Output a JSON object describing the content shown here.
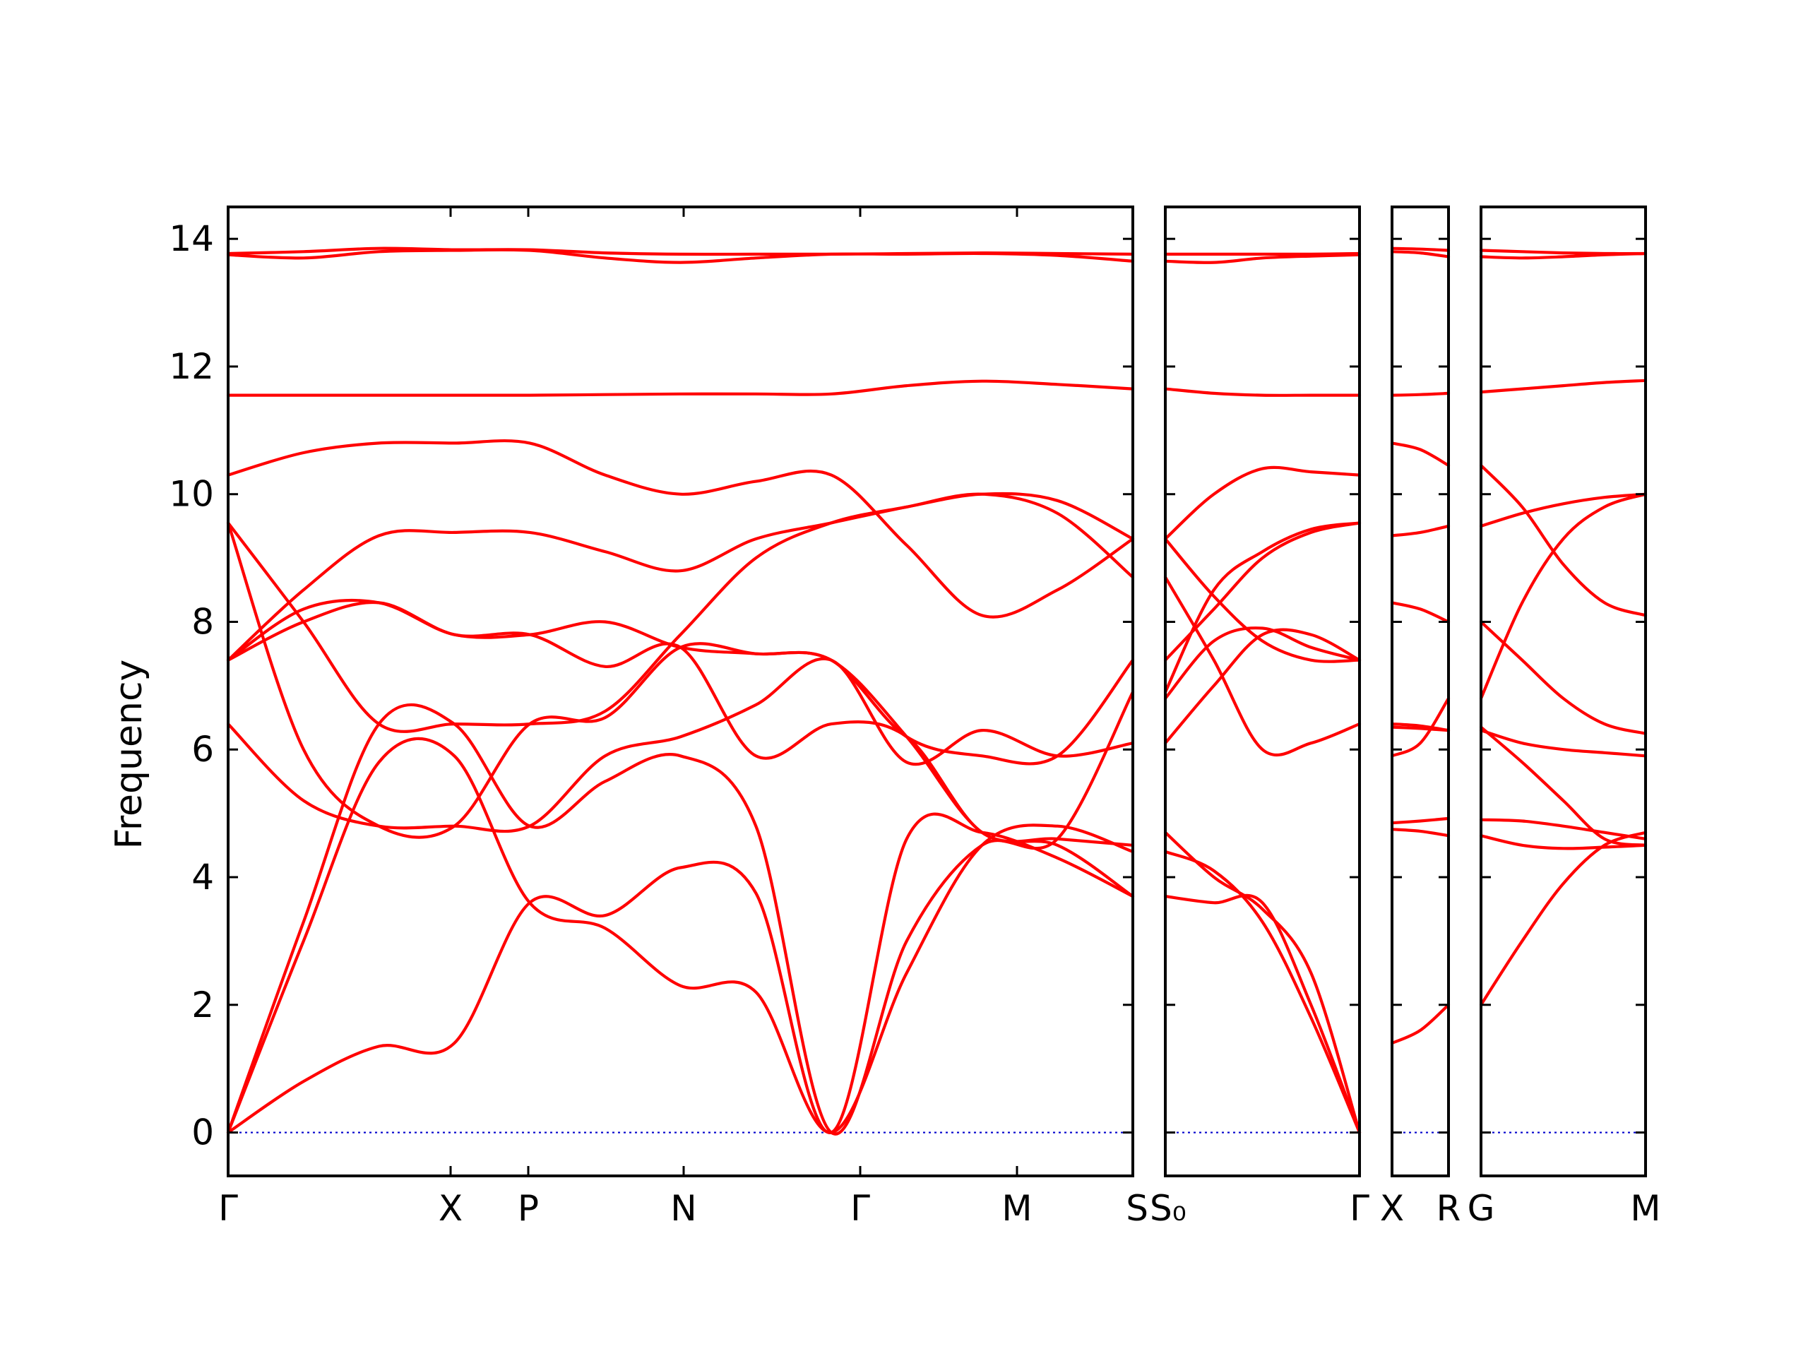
{
  "chart_data": {
    "type": "line",
    "ylabel": "Frequency",
    "ylim": [
      -0.68,
      14.5
    ],
    "yticks": [
      0,
      2,
      4,
      6,
      8,
      10,
      12,
      14
    ],
    "colors": {
      "bands": "#ff0000",
      "zero_line": "#0000cc",
      "frame": "#000000"
    },
    "grid": false,
    "panels": [
      {
        "name": "panel-1",
        "path_labels": [
          "Γ",
          "X",
          "P",
          "N",
          "Γ",
          "M",
          "S"
        ],
        "series": [
          {
            "name": "band-1",
            "x": [
              0,
              0.5,
              1,
              1.5,
              2,
              2.5,
              3,
              3.5,
              4,
              4.5,
              5,
              5.5,
              6
            ],
            "y": [
              0,
              0.8,
              1.35,
              1.4,
              3.6,
              3.4,
              4.15,
              3.75,
              0,
              4.6,
              4.7,
              4.3,
              3.7
            ]
          },
          {
            "name": "band-2",
            "x": [
              0,
              0.5,
              1,
              1.5,
              2,
              2.5,
              3,
              3.5,
              4,
              4.5,
              5,
              5.5,
              6
            ],
            "y": [
              0,
              3.0,
              5.8,
              5.9,
              3.6,
              3.2,
              2.3,
              2.2,
              0,
              2.5,
              4.5,
              4.8,
              4.4
            ]
          },
          {
            "name": "band-3",
            "x": [
              0,
              0.5,
              1,
              1.5,
              2,
              2.5,
              3,
              3.5,
              4,
              4.5,
              5,
              5.5,
              6
            ],
            "y": [
              0,
              3.3,
              6.4,
              6.4,
              4.8,
              5.5,
              5.9,
              4.8,
              0,
              3.0,
              4.5,
              4.6,
              6.9
            ]
          },
          {
            "name": "band-4",
            "x": [
              0,
              0.5,
              1,
              1.5,
              2,
              2.5,
              3,
              3.5,
              4,
              4.5,
              5,
              5.5,
              6
            ],
            "y": [
              6.4,
              5.2,
              4.8,
              4.8,
              4.8,
              5.9,
              6.2,
              6.7,
              7.4,
              5.8,
              6.3,
              5.9,
              6.1
            ]
          },
          {
            "name": "band-5",
            "x": [
              0,
              0.5,
              1,
              1.5,
              2,
              2.5,
              3,
              3.5,
              4,
              4.5,
              5,
              5.5,
              6
            ],
            "y": [
              7.4,
              8.2,
              8.3,
              7.8,
              7.8,
              7.3,
              7.6,
              5.9,
              6.4,
              6.2,
              4.7,
              4.6,
              4.5
            ]
          },
          {
            "name": "band-6",
            "x": [
              0,
              0.5,
              1,
              1.5,
              2,
              2.5,
              3,
              3.5,
              4,
              4.5,
              5,
              5.5,
              6
            ],
            "y": [
              7.4,
              8.0,
              8.3,
              7.8,
              7.8,
              8.0,
              7.6,
              7.5,
              7.4,
              6.2,
              5.9,
              5.9,
              7.4
            ]
          },
          {
            "name": "band-7",
            "x": [
              0,
              0.5,
              1,
              1.5,
              2,
              2.5,
              3,
              3.5,
              4,
              4.5,
              5,
              5.5,
              6
            ],
            "y": [
              9.55,
              6.0,
              4.8,
              4.8,
              6.4,
              6.5,
              7.6,
              7.5,
              7.4,
              6.2,
              4.7,
              4.5,
              3.7
            ]
          },
          {
            "name": "band-8",
            "x": [
              0,
              0.5,
              1,
              1.5,
              2,
              2.5,
              3,
              3.5,
              4,
              4.5,
              5,
              5.5,
              6
            ],
            "y": [
              9.55,
              8.0,
              6.4,
              6.4,
              6.4,
              6.6,
              7.8,
              9.0,
              9.55,
              9.8,
              10.0,
              9.9,
              9.3
            ]
          },
          {
            "name": "band-9",
            "x": [
              0,
              0.5,
              1,
              1.5,
              2,
              2.5,
              3,
              3.5,
              4,
              4.5,
              5,
              5.5,
              6
            ],
            "y": [
              7.4,
              8.5,
              9.35,
              9.4,
              9.4,
              9.1,
              8.8,
              9.3,
              9.55,
              9.8,
              10.0,
              9.7,
              8.7
            ]
          },
          {
            "name": "band-10",
            "x": [
              0,
              0.5,
              1,
              1.5,
              2,
              2.5,
              3,
              3.5,
              4,
              4.5,
              5,
              5.5,
              6
            ],
            "y": [
              10.3,
              10.65,
              10.8,
              10.8,
              10.8,
              10.3,
              10.0,
              10.2,
              10.3,
              9.2,
              8.1,
              8.5,
              9.3
            ]
          },
          {
            "name": "band-11",
            "x": [
              0,
              0.5,
              1,
              1.5,
              2,
              2.5,
              3,
              3.5,
              4,
              4.5,
              5,
              5.5,
              6
            ],
            "y": [
              11.55,
              11.55,
              11.55,
              11.55,
              11.55,
              11.56,
              11.57,
              11.57,
              11.57,
              11.7,
              11.77,
              11.72,
              11.65
            ]
          },
          {
            "name": "band-12",
            "x": [
              0,
              0.5,
              1,
              1.5,
              2,
              2.5,
              3,
              3.5,
              4,
              4.5,
              5,
              5.5,
              6
            ],
            "y": [
              13.75,
              13.7,
              13.8,
              13.82,
              13.82,
              13.7,
              13.63,
              13.7,
              13.76,
              13.76,
              13.77,
              13.74,
              13.65
            ]
          },
          {
            "name": "band-13",
            "x": [
              0,
              0.5,
              1,
              1.5,
              2,
              2.5,
              3,
              3.5,
              4,
              4.5,
              5,
              5.5,
              6
            ],
            "y": [
              13.77,
              13.8,
              13.85,
              13.83,
              13.83,
              13.78,
              13.76,
              13.76,
              13.76,
              13.77,
              13.78,
              13.77,
              13.76
            ]
          }
        ]
      },
      {
        "name": "panel-2",
        "path_labels": [
          "S₀",
          "Γ"
        ],
        "series": [
          {
            "name": "band-1",
            "x": [
              0,
              0.25,
              0.5,
              0.75,
              1
            ],
            "y": [
              3.7,
              3.6,
              3.6,
              2.0,
              0
            ]
          },
          {
            "name": "band-2",
            "x": [
              0,
              0.25,
              0.5,
              0.75,
              1
            ],
            "y": [
              4.4,
              4.1,
              3.3,
              1.8,
              0
            ]
          },
          {
            "name": "band-3",
            "x": [
              0,
              0.25,
              0.5,
              0.75,
              1
            ],
            "y": [
              4.7,
              4.0,
              3.5,
              2.5,
              0
            ]
          },
          {
            "name": "band-4",
            "x": [
              0,
              0.25,
              0.5,
              0.75,
              1
            ],
            "y": [
              6.1,
              7.0,
              7.8,
              7.8,
              7.4
            ]
          },
          {
            "name": "band-5",
            "x": [
              0,
              0.25,
              0.5,
              0.75,
              1
            ],
            "y": [
              6.8,
              7.7,
              7.9,
              7.6,
              7.4
            ]
          },
          {
            "name": "band-6",
            "x": [
              0,
              0.25,
              0.5,
              0.75,
              1
            ],
            "y": [
              7.4,
              8.2,
              9.0,
              9.4,
              9.55
            ]
          },
          {
            "name": "band-7",
            "x": [
              0,
              0.25,
              0.5,
              0.75,
              1
            ],
            "y": [
              8.7,
              7.4,
              6.0,
              6.1,
              6.4
            ]
          },
          {
            "name": "band-8",
            "x": [
              0,
              0.25,
              0.5,
              0.75,
              1
            ],
            "y": [
              9.3,
              8.4,
              7.7,
              7.4,
              7.4
            ]
          },
          {
            "name": "band-9",
            "x": [
              0,
              0.25,
              0.5,
              0.75,
              1
            ],
            "y": [
              6.9,
              8.5,
              9.1,
              9.45,
              9.55
            ]
          },
          {
            "name": "band-10",
            "x": [
              0,
              0.25,
              0.5,
              0.75,
              1
            ],
            "y": [
              9.3,
              10.0,
              10.4,
              10.35,
              10.3
            ]
          },
          {
            "name": "band-11",
            "x": [
              0,
              0.25,
              0.5,
              0.75,
              1
            ],
            "y": [
              11.65,
              11.58,
              11.55,
              11.55,
              11.55
            ]
          },
          {
            "name": "band-12",
            "x": [
              0,
              0.25,
              0.5,
              0.75,
              1
            ],
            "y": [
              13.65,
              13.63,
              13.7,
              13.73,
              13.75
            ]
          },
          {
            "name": "band-13",
            "x": [
              0,
              0.25,
              0.5,
              0.75,
              1
            ],
            "y": [
              13.76,
              13.76,
              13.76,
              13.76,
              13.77
            ]
          }
        ]
      },
      {
        "name": "panel-3",
        "path_labels": [
          "X",
          "R"
        ],
        "series": [
          {
            "name": "band-1",
            "x": [
              0,
              0.5,
              1
            ],
            "y": [
              1.4,
              1.6,
              2.0
            ]
          },
          {
            "name": "band-2",
            "x": [
              0,
              0.5,
              1
            ],
            "y": [
              4.75,
              4.72,
              4.65
            ]
          },
          {
            "name": "band-3",
            "x": [
              0,
              0.5,
              1
            ],
            "y": [
              4.85,
              4.88,
              4.92
            ]
          },
          {
            "name": "band-4",
            "x": [
              0,
              0.5,
              1
            ],
            "y": [
              5.9,
              6.1,
              6.8
            ]
          },
          {
            "name": "band-5",
            "x": [
              0,
              0.5,
              1
            ],
            "y": [
              6.4,
              6.37,
              6.3
            ]
          },
          {
            "name": "band-6",
            "x": [
              0,
              0.5,
              1
            ],
            "y": [
              6.35,
              6.33,
              6.3
            ]
          },
          {
            "name": "band-7",
            "x": [
              0,
              0.5,
              1
            ],
            "y": [
              8.3,
              8.2,
              8.0
            ]
          },
          {
            "name": "band-8",
            "x": [
              0,
              0.5,
              1
            ],
            "y": [
              9.35,
              9.4,
              9.5
            ]
          },
          {
            "name": "band-9",
            "x": [
              0,
              0.5,
              1
            ],
            "y": [
              10.8,
              10.7,
              10.45
            ]
          },
          {
            "name": "band-10",
            "x": [
              0,
              0.5,
              1
            ],
            "y": [
              11.55,
              11.56,
              11.58
            ]
          },
          {
            "name": "band-11",
            "x": [
              0,
              0.5,
              1
            ],
            "y": [
              13.8,
              13.78,
              13.72
            ]
          },
          {
            "name": "band-12",
            "x": [
              0,
              0.5,
              1
            ],
            "y": [
              13.85,
              13.84,
              13.82
            ]
          }
        ]
      },
      {
        "name": "panel-4",
        "path_labels": [
          "G",
          "M"
        ],
        "series": [
          {
            "name": "band-1",
            "x": [
              0,
              0.25,
              0.5,
              0.75,
              1
            ],
            "y": [
              2.0,
              3.0,
              3.9,
              4.5,
              4.7
            ]
          },
          {
            "name": "band-2",
            "x": [
              0,
              0.25,
              0.5,
              0.75,
              1
            ],
            "y": [
              4.65,
              4.5,
              4.45,
              4.47,
              4.5
            ]
          },
          {
            "name": "band-3",
            "x": [
              0,
              0.25,
              0.5,
              0.75,
              1
            ],
            "y": [
              4.9,
              4.88,
              4.8,
              4.7,
              4.6
            ]
          },
          {
            "name": "band-4",
            "x": [
              0,
              0.25,
              0.5,
              0.75,
              1
            ],
            "y": [
              6.3,
              6.1,
              6.0,
              5.95,
              5.9
            ]
          },
          {
            "name": "band-5",
            "x": [
              0,
              0.25,
              0.5,
              0.75,
              1
            ],
            "y": [
              6.35,
              5.8,
              5.2,
              4.6,
              4.5
            ]
          },
          {
            "name": "band-6",
            "x": [
              0,
              0.25,
              0.5,
              0.75,
              1
            ],
            "y": [
              8.0,
              7.4,
              6.8,
              6.4,
              6.25
            ]
          },
          {
            "name": "band-7",
            "x": [
              0,
              0.25,
              0.5,
              0.75,
              1
            ],
            "y": [
              6.8,
              8.3,
              9.3,
              9.8,
              10.0
            ]
          },
          {
            "name": "band-8",
            "x": [
              0,
              0.25,
              0.5,
              0.75,
              1
            ],
            "y": [
              9.5,
              9.7,
              9.85,
              9.95,
              10.0
            ]
          },
          {
            "name": "band-9",
            "x": [
              0,
              0.25,
              0.5,
              0.75,
              1
            ],
            "y": [
              10.45,
              9.8,
              8.9,
              8.3,
              8.1
            ]
          },
          {
            "name": "band-10",
            "x": [
              0,
              0.25,
              0.5,
              0.75,
              1
            ],
            "y": [
              11.6,
              11.65,
              11.7,
              11.75,
              11.78
            ]
          },
          {
            "name": "band-11",
            "x": [
              0,
              0.25,
              0.5,
              0.75,
              1
            ],
            "y": [
              13.72,
              13.7,
              13.72,
              13.75,
              13.77
            ]
          },
          {
            "name": "band-12",
            "x": [
              0,
              0.25,
              0.5,
              0.75,
              1
            ],
            "y": [
              13.82,
              13.8,
              13.78,
              13.77,
              13.77
            ]
          }
        ]
      }
    ]
  }
}
